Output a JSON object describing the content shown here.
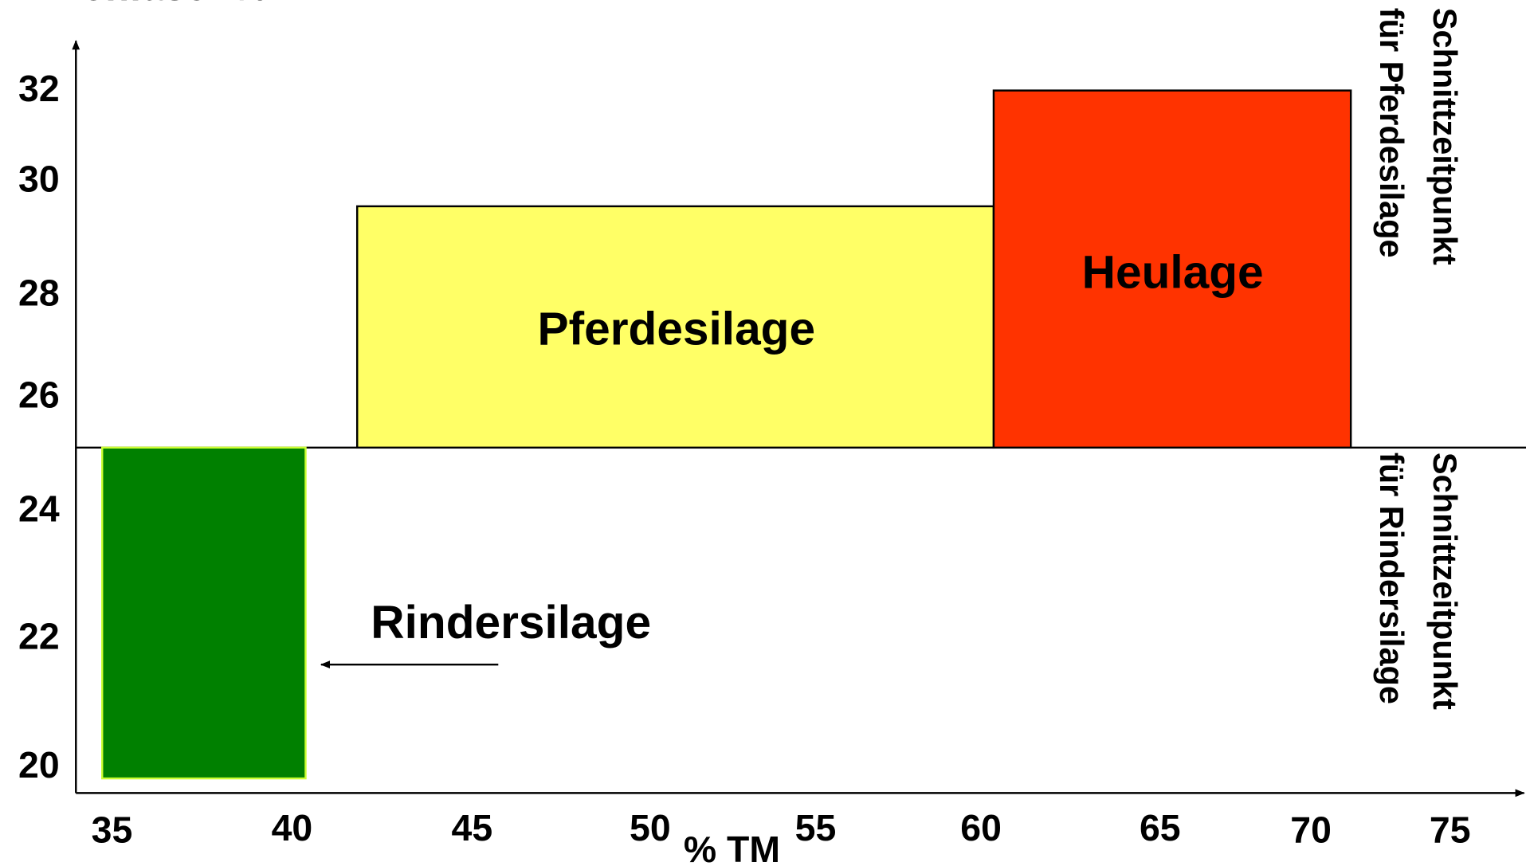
{
  "title": "Rohfaser % TM",
  "x_axis_label": "% TM",
  "y_ticks": [
    32,
    30,
    28,
    26,
    24,
    22,
    20
  ],
  "x_ticks": [
    35,
    40,
    45,
    50,
    55,
    60,
    65,
    70,
    75
  ],
  "regions": [
    {
      "label": "Pferdesilage"
    },
    {
      "label": "Heulage"
    },
    {
      "label": "Rindersilage"
    }
  ],
  "side_notes": [
    {
      "lines": [
        "Schnittzeitpunkt",
        "für Pferdesilage"
      ]
    },
    {
      "lines": [
        "Schnittzeitpunkt",
        "für Rindersilage"
      ]
    }
  ]
}
